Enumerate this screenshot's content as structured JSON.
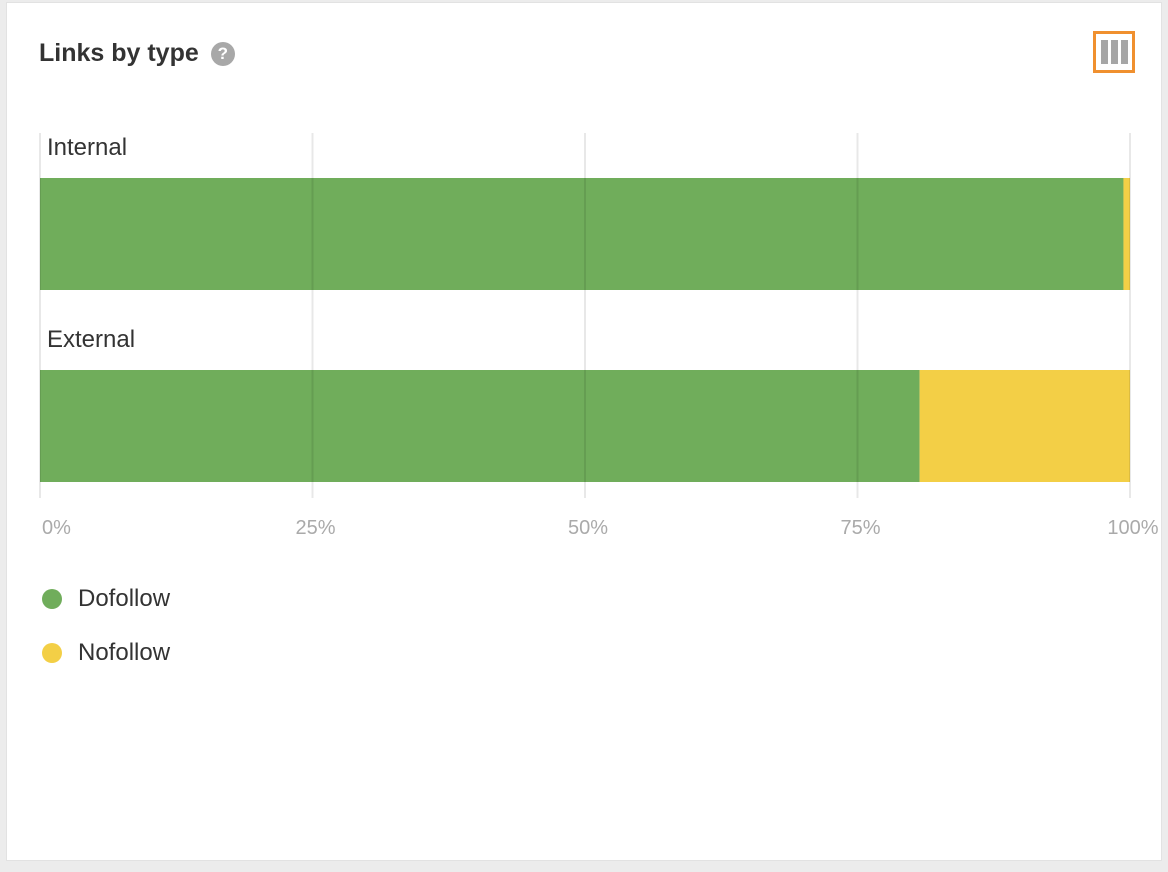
{
  "header": {
    "title": "Links by type",
    "help_icon": "question-circle-icon",
    "columns_button_icon": "columns-icon"
  },
  "colors": {
    "dofollow": "#70ad5b",
    "nofollow": "#f3cf46",
    "accent": "#f0902f"
  },
  "chart_data": {
    "type": "bar",
    "orientation": "horizontal",
    "stacked": true,
    "normalized": true,
    "categories": [
      "Internal",
      "External"
    ],
    "series": [
      {
        "name": "Dofollow",
        "values": [
          99.4,
          80.7
        ]
      },
      {
        "name": "Nofollow",
        "values": [
          0.6,
          19.3
        ]
      }
    ],
    "xlim": [
      0,
      100
    ],
    "xticks": [
      "0%",
      "25%",
      "50%",
      "75%",
      "100%"
    ],
    "grid": true,
    "legend_placement": "bottom-left"
  }
}
